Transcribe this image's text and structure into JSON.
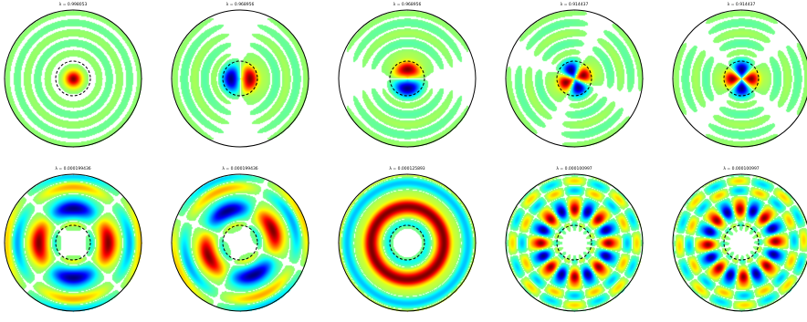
{
  "colormap": "jet (blue-cyan-yellow-red), diverging around zero",
  "colors": {
    "background": "#ffffff",
    "boundary_circle": "#000000",
    "inner_circle_dashed": "#000000",
    "high": "#7f0000",
    "low": "#00007f"
  },
  "panels": [
    {
      "title": "λ = 0.998053"
    },
    {
      "title": "λ = 0.968956"
    },
    {
      "title": "λ = 0.968956"
    },
    {
      "title": "λ = 0.914437"
    },
    {
      "title": "λ = 0.914437"
    },
    {
      "title": "λ = 0.000199436"
    },
    {
      "title": "λ = 0.000199436"
    },
    {
      "title": "λ = 0.000125893"
    },
    {
      "title": "λ = 0.000100997"
    },
    {
      "title": "λ = 0.000100997"
    }
  ]
}
